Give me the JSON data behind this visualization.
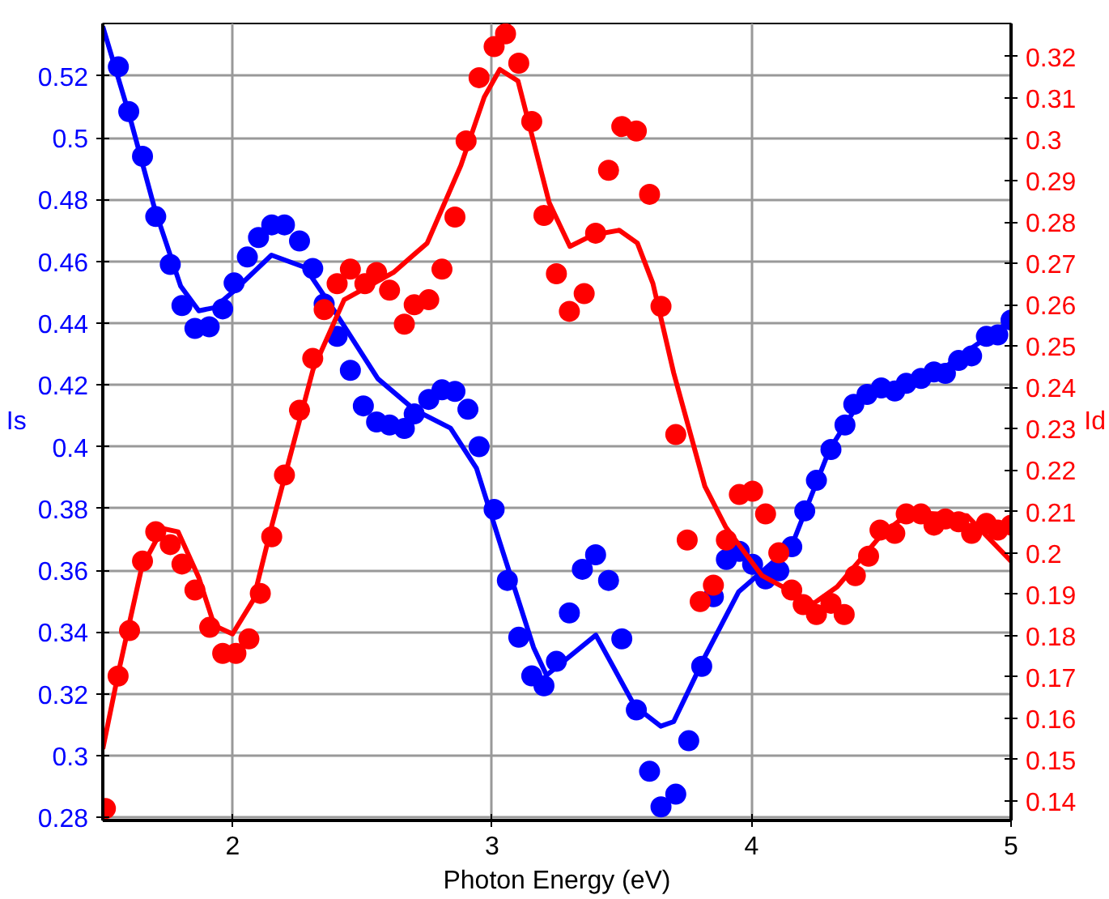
{
  "chart_data": {
    "type": "scatter",
    "xlabel": "Photon Energy (eV)",
    "ylabel": "Is",
    "y2label": "Id",
    "xlim": [
      1.5,
      5
    ],
    "xticks": [
      2,
      3,
      4,
      5
    ],
    "ylim": [
      0.279,
      0.537
    ],
    "yticks": [
      0.28,
      0.3,
      0.32,
      0.34,
      0.36,
      0.38,
      0.4,
      0.42,
      0.44,
      0.46,
      0.48,
      0.5,
      0.52
    ],
    "y2lim": [
      0.1353,
      0.328
    ],
    "y2ticks": [
      0.14,
      0.15,
      0.16,
      0.17,
      0.18,
      0.19,
      0.2,
      0.21,
      0.22,
      0.23,
      0.24,
      0.25,
      0.26,
      0.27,
      0.28,
      0.29,
      0.3,
      0.31,
      0.32
    ],
    "grid": true,
    "marker": "circle",
    "series": [
      {
        "color": "#0000ff",
        "x": [
          1.56,
          1.6,
          1.653,
          1.704,
          1.76,
          1.805,
          1.855,
          1.91,
          1.962,
          2.006,
          2.057,
          2.1,
          2.151,
          2.2,
          2.258,
          2.309,
          2.353,
          2.403,
          2.454,
          2.504,
          2.555,
          2.605,
          2.662,
          2.7,
          2.756,
          2.807,
          2.857,
          2.907,
          2.95,
          3.008,
          3.059,
          3.103,
          3.153,
          3.2,
          3.248,
          3.298,
          3.348,
          3.399,
          3.449,
          3.5,
          3.556,
          3.607,
          3.651,
          3.708,
          3.758,
          3.808,
          3.853,
          3.903,
          3.953,
          4.004,
          4.054,
          4.105,
          4.155,
          4.205,
          4.25,
          4.306,
          4.36,
          4.394,
          4.445,
          4.5,
          4.552,
          4.596,
          4.653,
          4.703,
          4.747,
          4.798,
          4.848,
          4.905,
          4.949,
          5.0
        ],
        "values": [
          0.523,
          0.5085,
          0.494,
          0.4745,
          0.459,
          0.4457,
          0.4383,
          0.4388,
          0.4446,
          0.453,
          0.4614,
          0.4677,
          0.4718,
          0.4718,
          0.4666,
          0.4577,
          0.4462,
          0.4357,
          0.4247,
          0.4132,
          0.408,
          0.407,
          0.4059,
          0.4106,
          0.4153,
          0.4184,
          0.4179,
          0.4121,
          0.4,
          0.3797,
          0.3567,
          0.3383,
          0.3258,
          0.3226,
          0.3305,
          0.3462,
          0.3603,
          0.365,
          0.3567,
          0.3378,
          0.3148,
          0.2949,
          0.2834,
          0.2875,
          0.3048,
          0.3289,
          0.3514,
          0.3635,
          0.3661,
          0.3619,
          0.3572,
          0.3598,
          0.3676,
          0.3792,
          0.3891,
          0.3991,
          0.407,
          0.4137,
          0.4169,
          0.419,
          0.418,
          0.4205,
          0.4221,
          0.4242,
          0.4237,
          0.4279,
          0.4294,
          0.4357,
          0.4362,
          0.441
        ]
      },
      {
        "type": "line",
        "color": "#0000ff",
        "marker": "none",
        "x": [
          1.5,
          1.6,
          1.7,
          1.8,
          1.87,
          1.93,
          2.0,
          2.15,
          2.28,
          2.4,
          2.56,
          2.7,
          2.84,
          2.94,
          3.03,
          3.16,
          3.21,
          3.4,
          3.55,
          3.65,
          3.7,
          3.82,
          3.95,
          4.06,
          4.155,
          4.3,
          4.42,
          4.7,
          5.0
        ],
        "values": [
          0.536,
          0.508,
          0.477,
          0.452,
          0.444,
          0.445,
          0.45,
          0.462,
          0.458,
          0.443,
          0.422,
          0.412,
          0.406,
          0.393,
          0.369,
          0.335,
          0.326,
          0.339,
          0.316,
          0.3095,
          0.311,
          0.332,
          0.353,
          0.361,
          0.368,
          0.399,
          0.415,
          0.423,
          0.441
        ]
      },
      {
        "color": "#ff0000",
        "axis": "y2",
        "x": [
          1.51,
          1.559,
          1.603,
          1.653,
          1.704,
          1.76,
          1.805,
          1.855,
          1.912,
          1.962,
          2.013,
          2.063,
          2.107,
          2.151,
          2.2,
          2.258,
          2.309,
          2.353,
          2.403,
          2.454,
          2.51,
          2.555,
          2.605,
          2.662,
          2.7,
          2.756,
          2.807,
          2.857,
          2.9,
          2.95,
          3.008,
          3.052,
          3.103,
          3.153,
          3.2,
          3.248,
          3.298,
          3.355,
          3.399,
          3.449,
          3.5,
          3.556,
          3.607,
          3.651,
          3.708,
          3.752,
          3.802,
          3.853,
          3.903,
          3.953,
          4.004,
          4.054,
          4.105,
          4.155,
          4.199,
          4.25,
          4.306,
          4.357,
          4.4,
          4.451,
          4.495,
          4.552,
          4.596,
          4.653,
          4.703,
          4.747,
          4.798,
          4.848,
          4.905,
          4.949,
          5.0
        ],
        "values": [
          0.1382,
          0.1702,
          0.1812,
          0.198,
          0.2051,
          0.202,
          0.1973,
          0.191,
          0.182,
          0.1757,
          0.1757,
          0.1792,
          0.1902,
          0.2039,
          0.2188,
          0.2345,
          0.247,
          0.2588,
          0.2651,
          0.2686,
          0.2651,
          0.2678,
          0.2635,
          0.2553,
          0.26,
          0.2612,
          0.2686,
          0.2812,
          0.2996,
          0.3149,
          0.3224,
          0.3255,
          0.3184,
          0.3043,
          0.2816,
          0.2675,
          0.2584,
          0.2627,
          0.2773,
          0.2925,
          0.3031,
          0.302,
          0.2867,
          0.2596,
          0.2286,
          0.2031,
          0.1882,
          0.1922,
          0.2031,
          0.2141,
          0.2149,
          0.2094,
          0.2,
          0.191,
          0.1875,
          0.1851,
          0.1878,
          0.1851,
          0.1945,
          0.1992,
          0.2055,
          0.2047,
          0.2094,
          0.2094,
          0.2067,
          0.2082,
          0.2075,
          0.2047,
          0.2071,
          0.2055,
          0.2067
        ]
      },
      {
        "type": "line",
        "color": "#ff0000",
        "axis": "y2",
        "marker": "none",
        "x": [
          1.5,
          1.56,
          1.65,
          1.73,
          1.79,
          1.87,
          1.93,
          2.0,
          2.08,
          2.15,
          2.31,
          2.43,
          2.62,
          2.75,
          2.88,
          2.97,
          3.03,
          3.1,
          3.22,
          3.3,
          3.39,
          3.49,
          3.56,
          3.62,
          3.7,
          3.82,
          3.9,
          4.04,
          4.155,
          4.24,
          4.33,
          4.5,
          4.61,
          4.83,
          5.0
        ],
        "values": [
          0.1526,
          0.171,
          0.1965,
          0.2059,
          0.2051,
          0.194,
          0.1824,
          0.1804,
          0.1886,
          0.2063,
          0.2443,
          0.2612,
          0.2678,
          0.2749,
          0.2937,
          0.3102,
          0.3169,
          0.3141,
          0.2847,
          0.2741,
          0.2769,
          0.278,
          0.2749,
          0.2651,
          0.2435,
          0.2161,
          0.2063,
          0.1945,
          0.1906,
          0.1878,
          0.1918,
          0.2043,
          0.2098,
          0.209,
          0.198
        ]
      }
    ]
  }
}
